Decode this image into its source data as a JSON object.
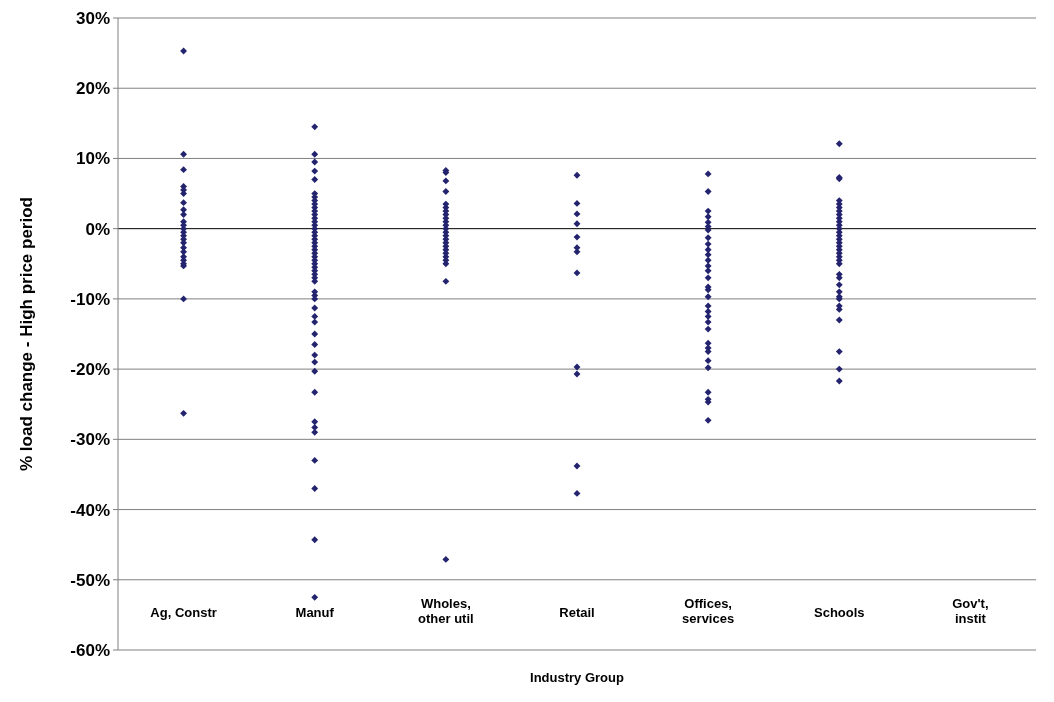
{
  "chart_data": {
    "type": "scatter",
    "xlabel": "Industry Group",
    "ylabel": "% load change - High price period",
    "categories": [
      "Ag, Constr",
      "Manuf",
      "Wholes,\nother util",
      "Retail",
      "Offices,\nservices",
      "Schools",
      "Gov't,\ninstit"
    ],
    "ylim": [
      -60,
      30
    ],
    "yticks": [
      {
        "value": 30,
        "label": "30%"
      },
      {
        "value": 20,
        "label": "20%"
      },
      {
        "value": 10,
        "label": "10%"
      },
      {
        "value": 0,
        "label": "0%"
      },
      {
        "value": -10,
        "label": "-10%"
      },
      {
        "value": -20,
        "label": "-20%"
      },
      {
        "value": -30,
        "label": "-30%"
      },
      {
        "value": -40,
        "label": "-40%"
      },
      {
        "value": -50,
        "label": "-50%"
      },
      {
        "value": -60,
        "label": "-60%"
      }
    ],
    "grid": "y",
    "marker": "diamond",
    "series": [
      {
        "color": "#23236e",
        "x": [
          "Ag, Constr",
          "Ag, Constr",
          "Ag, Constr",
          "Ag, Constr",
          "Ag, Constr",
          "Ag, Constr",
          "Ag, Constr",
          "Ag, Constr",
          "Ag, Constr",
          "Ag, Constr",
          "Ag, Constr",
          "Ag, Constr",
          "Ag, Constr",
          "Ag, Constr",
          "Ag, Constr",
          "Ag, Constr",
          "Ag, Constr",
          "Ag, Constr",
          "Ag, Constr",
          "Ag, Constr",
          "Ag, Constr",
          "Ag, Constr",
          "Ag, Constr",
          "Ag, Constr",
          "Manuf",
          "Manuf",
          "Manuf",
          "Manuf",
          "Manuf",
          "Manuf",
          "Manuf",
          "Manuf",
          "Manuf",
          "Manuf",
          "Manuf",
          "Manuf",
          "Manuf",
          "Manuf",
          "Manuf",
          "Manuf",
          "Manuf",
          "Manuf",
          "Manuf",
          "Manuf",
          "Manuf",
          "Manuf",
          "Manuf",
          "Manuf",
          "Manuf",
          "Manuf",
          "Manuf",
          "Manuf",
          "Manuf",
          "Manuf",
          "Manuf",
          "Manuf",
          "Manuf",
          "Manuf",
          "Manuf",
          "Manuf",
          "Manuf",
          "Manuf",
          "Manuf",
          "Manuf",
          "Manuf",
          "Manuf",
          "Manuf",
          "Manuf",
          "Manuf",
          "Manuf",
          "Manuf",
          "Manuf",
          "Manuf",
          "Manuf",
          "Wholes,\nother util",
          "Wholes,\nother util",
          "Wholes,\nother util",
          "Wholes,\nother util",
          "Wholes,\nother util",
          "Wholes,\nother util",
          "Wholes,\nother util",
          "Wholes,\nother util",
          "Wholes,\nother util",
          "Wholes,\nother util",
          "Wholes,\nother util",
          "Wholes,\nother util",
          "Wholes,\nother util",
          "Wholes,\nother util",
          "Wholes,\nother util",
          "Wholes,\nother util",
          "Wholes,\nother util",
          "Wholes,\nother util",
          "Wholes,\nother util",
          "Wholes,\nother util",
          "Wholes,\nother util",
          "Wholes,\nother util",
          "Wholes,\nother util",
          "Wholes,\nother util",
          "Retail",
          "Retail",
          "Retail",
          "Retail",
          "Retail",
          "Retail",
          "Retail",
          "Retail",
          "Retail",
          "Retail",
          "Retail",
          "Retail",
          "Offices,\nservices",
          "Offices,\nservices",
          "Offices,\nservices",
          "Offices,\nservices",
          "Offices,\nservices",
          "Offices,\nservices",
          "Offices,\nservices",
          "Offices,\nservices",
          "Offices,\nservices",
          "Offices,\nservices",
          "Offices,\nservices",
          "Offices,\nservices",
          "Offices,\nservices",
          "Offices,\nservices",
          "Offices,\nservices",
          "Offices,\nservices",
          "Offices,\nservices",
          "Offices,\nservices",
          "Offices,\nservices",
          "Offices,\nservices",
          "Offices,\nservices",
          "Offices,\nservices",
          "Offices,\nservices",
          "Offices,\nservices",
          "Offices,\nservices",
          "Offices,\nservices",
          "Offices,\nservices",
          "Offices,\nservices",
          "Offices,\nservices",
          "Offices,\nservices",
          "Offices,\nservices",
          "Offices,\nservices",
          "Schools",
          "Schools",
          "Schools",
          "Schools",
          "Schools",
          "Schools",
          "Schools",
          "Schools",
          "Schools",
          "Schools",
          "Schools",
          "Schools",
          "Schools",
          "Schools",
          "Schools",
          "Schools",
          "Schools",
          "Schools",
          "Schools",
          "Schools",
          "Schools",
          "Schools",
          "Schools",
          "Schools",
          "Schools",
          "Schools",
          "Schools",
          "Schools",
          "Schools",
          "Schools",
          "Schools",
          "Schools",
          "Schools",
          "Schools"
        ],
        "values": [
          25.3,
          10.6,
          8.4,
          6,
          5.5,
          5,
          3.7,
          2.7,
          2,
          1,
          0.5,
          0,
          -0.5,
          -1,
          -1.5,
          -2,
          -2.7,
          -3.3,
          -4,
          -4.5,
          -5,
          -5.3,
          -10,
          -26.3,
          14.5,
          10.6,
          9.5,
          8.2,
          7,
          5,
          4.5,
          4,
          3.5,
          3,
          2.5,
          2,
          1.5,
          1,
          0.5,
          0,
          -0.5,
          -1,
          -1.5,
          -2,
          -2.5,
          -3,
          -3.5,
          -4,
          -4.5,
          -5,
          -5.5,
          -6,
          -6.5,
          -7,
          -7.5,
          -9,
          -9.5,
          -10,
          -11.3,
          -12.5,
          -13.3,
          -15,
          -16.5,
          -18,
          -19,
          -20.3,
          -23.3,
          -27.5,
          -28.3,
          -29,
          -33,
          -37,
          -44.3,
          -52.5,
          8.3,
          8,
          6.8,
          5.3,
          3.5,
          3,
          2.5,
          2,
          1.5,
          1,
          0.5,
          0,
          -0.5,
          -1,
          -1.5,
          -2,
          -2.5,
          -3,
          -3.5,
          -4,
          -4.5,
          -5,
          -7.5,
          -47.1,
          7.6,
          3.6,
          2.1,
          0.7,
          -1.2,
          -2.7,
          -3.3,
          -6.3,
          -19.7,
          -20.7,
          -33.8,
          -37.7,
          7.8,
          5.3,
          2.5,
          1.7,
          0.9,
          0.3,
          -0.2,
          -1.3,
          -2.2,
          -3,
          -3.7,
          -4.5,
          -5.3,
          -6,
          -7,
          -8.3,
          -8.7,
          -9.7,
          -11,
          -11.8,
          -12.5,
          -13.3,
          -14.3,
          -16.3,
          -17,
          -17.5,
          -18.8,
          -19.8,
          -23.3,
          -24.3,
          -24.7,
          -27.3,
          12.1,
          7.3,
          7.1,
          4,
          3.5,
          3,
          2.5,
          2,
          1.5,
          1,
          0.5,
          0,
          -0.5,
          -1,
          -1.5,
          -2,
          -2.5,
          -3,
          -3.5,
          -4,
          -4.5,
          -5,
          -6.5,
          -7,
          -8,
          -9,
          -9.7,
          -10,
          -11,
          -11.5,
          -13,
          -17.5,
          -20,
          -21.7
        ]
      }
    ]
  }
}
